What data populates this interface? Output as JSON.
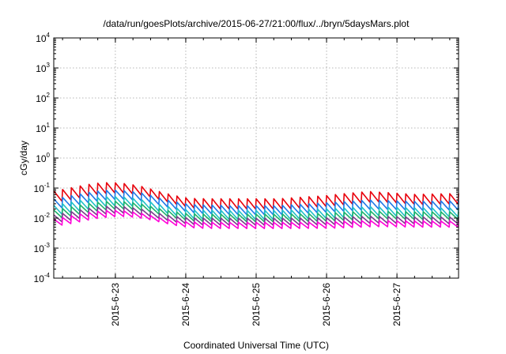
{
  "chart_data": {
    "type": "line",
    "title": "/data/run/goesPlots/archive/2015-06-27/21:00/flux/../bryn/5daysMars.plot",
    "xlabel": "Coordinated Universal Time (UTC)",
    "ylabel": "cGy/day",
    "yscale": "log",
    "ylim": [
      0.0001,
      10000
    ],
    "y_ticks": [
      {
        "base": "10",
        "exp": "-4",
        "value": 0.0001
      },
      {
        "base": "10",
        "exp": "-3",
        "value": 0.001
      },
      {
        "base": "10",
        "exp": "-2",
        "value": 0.01
      },
      {
        "base": "10",
        "exp": "-1",
        "value": 0.1
      },
      {
        "base": "10",
        "exp": "0",
        "value": 1
      },
      {
        "base": "10",
        "exp": "1",
        "value": 10
      },
      {
        "base": "10",
        "exp": "2",
        "value": 100
      },
      {
        "base": "10",
        "exp": "3",
        "value": 1000
      },
      {
        "base": "10",
        "exp": "4",
        "value": 10000
      }
    ],
    "xlim": [
      "2015-06-22 03:00",
      "2015-06-27 21:00"
    ],
    "x_ticks": [
      "2015-6-23",
      "2015-6-24",
      "2015-6-25",
      "2015-6-26",
      "2015-6-27"
    ],
    "grid": true,
    "sawtooth_period_hours": 3,
    "series": [
      {
        "color": "#e8000b",
        "base": [
          0.03,
          0.03,
          0.03,
          0.02,
          0.02,
          0.02,
          0.025,
          0.035,
          0.028,
          0.03
        ],
        "peak_ratio": 2.2
      },
      {
        "color": "#1f78e8",
        "base": [
          0.018,
          0.018,
          0.02,
          0.014,
          0.013,
          0.013,
          0.016,
          0.02,
          0.018,
          0.019
        ],
        "peak_ratio": 2.0
      },
      {
        "color": "#20c0c8",
        "base": [
          0.011,
          0.011,
          0.012,
          0.009,
          0.009,
          0.009,
          0.01,
          0.012,
          0.011,
          0.011
        ],
        "peak_ratio": 2.0
      },
      {
        "color": "#1db36b",
        "base": [
          0.0085,
          0.0085,
          0.0095,
          0.0075,
          0.0075,
          0.0075,
          0.008,
          0.0095,
          0.009,
          0.009
        ],
        "peak_ratio": 1.8
      },
      {
        "color": "#7a3d8c",
        "base": [
          0.0062,
          0.0062,
          0.0068,
          0.0058,
          0.0058,
          0.0058,
          0.006,
          0.0068,
          0.0064,
          0.0064
        ],
        "peak_ratio": 1.7
      },
      {
        "color": "#ff00d8",
        "base": [
          0.0048,
          0.0048,
          0.0052,
          0.0045,
          0.0045,
          0.0045,
          0.0046,
          0.0052,
          0.005,
          0.005
        ],
        "peak_ratio": 1.6
      }
    ]
  }
}
